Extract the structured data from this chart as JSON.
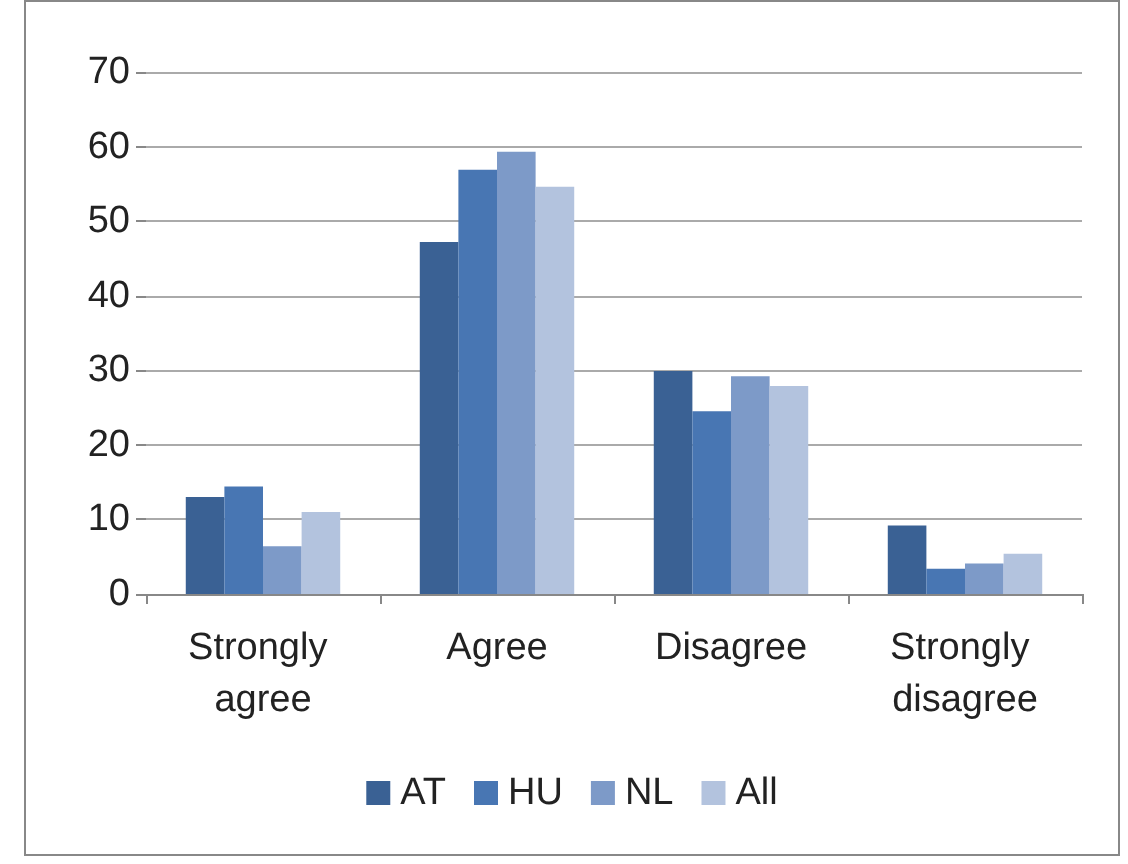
{
  "chart_data": {
    "type": "bar",
    "categories": [
      "Strongly agree",
      "Agree",
      "Disagree",
      "Strongly disagree"
    ],
    "series": [
      {
        "name": "AT",
        "color": "#3a6194",
        "values": [
          13.0,
          47.2,
          29.9,
          9.2
        ]
      },
      {
        "name": "HU",
        "color": "#4876b3",
        "values": [
          14.4,
          56.9,
          24.5,
          3.4
        ]
      },
      {
        "name": "NL",
        "color": "#7d9ac8",
        "values": [
          6.4,
          59.3,
          29.2,
          4.1
        ]
      },
      {
        "name": "All",
        "color": "#b3c3de",
        "values": [
          11.0,
          54.6,
          27.9,
          5.4
        ]
      }
    ],
    "ylim": [
      0,
      70
    ],
    "yticks": [
      0,
      10,
      20,
      30,
      40,
      50,
      60,
      70
    ],
    "grid": "y",
    "legend": "bottom"
  }
}
